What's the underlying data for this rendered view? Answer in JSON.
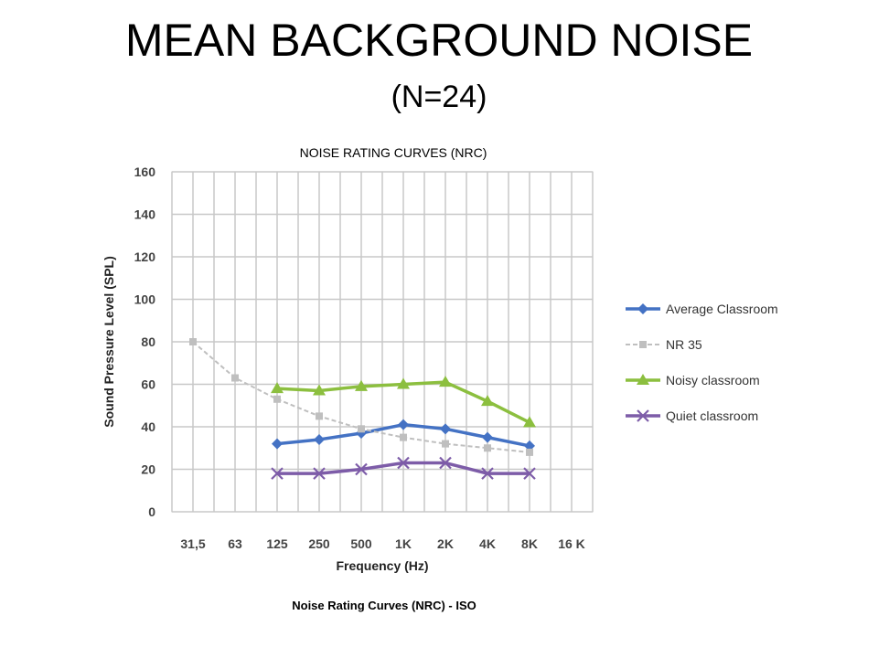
{
  "slide": {
    "title": "MEAN BACKGROUND NOISE",
    "subtitle": "(N=24)",
    "caption": "Noise Rating Curves (NRC) -  ISO"
  },
  "chart_data": {
    "type": "line",
    "title": "NOISE RATING CURVES (NRC)",
    "xlabel": "Frequency (Hz)",
    "ylabel": "Sound Pressure Level (SPL)",
    "categories": [
      "31,5",
      "63",
      "125",
      "250",
      "500",
      "1K",
      "2K",
      "4K",
      "8K",
      "16 K"
    ],
    "ylim": [
      0,
      160
    ],
    "yticks": [
      0,
      20,
      40,
      60,
      80,
      100,
      120,
      140,
      160
    ],
    "grid": true,
    "legend_position": "right",
    "series": [
      {
        "name": "Average Classroom",
        "color": "#4472c4",
        "marker": "diamond",
        "values": [
          null,
          null,
          32,
          34,
          37,
          41,
          39,
          35,
          31,
          null
        ]
      },
      {
        "name": "NR 35",
        "color": "#bfbfbf",
        "marker": "square",
        "dashed": true,
        "values": [
          80,
          63,
          53,
          45,
          39,
          35,
          32,
          30,
          28,
          null
        ]
      },
      {
        "name": "Noisy classroom",
        "color": "#8cbf3f",
        "marker": "triangle",
        "values": [
          null,
          null,
          58,
          57,
          59,
          60,
          61,
          52,
          42,
          null
        ]
      },
      {
        "name": "Quiet classroom",
        "color": "#7d5ca8",
        "marker": "x",
        "values": [
          null,
          null,
          18,
          18,
          20,
          23,
          23,
          18,
          18,
          null
        ]
      }
    ]
  }
}
